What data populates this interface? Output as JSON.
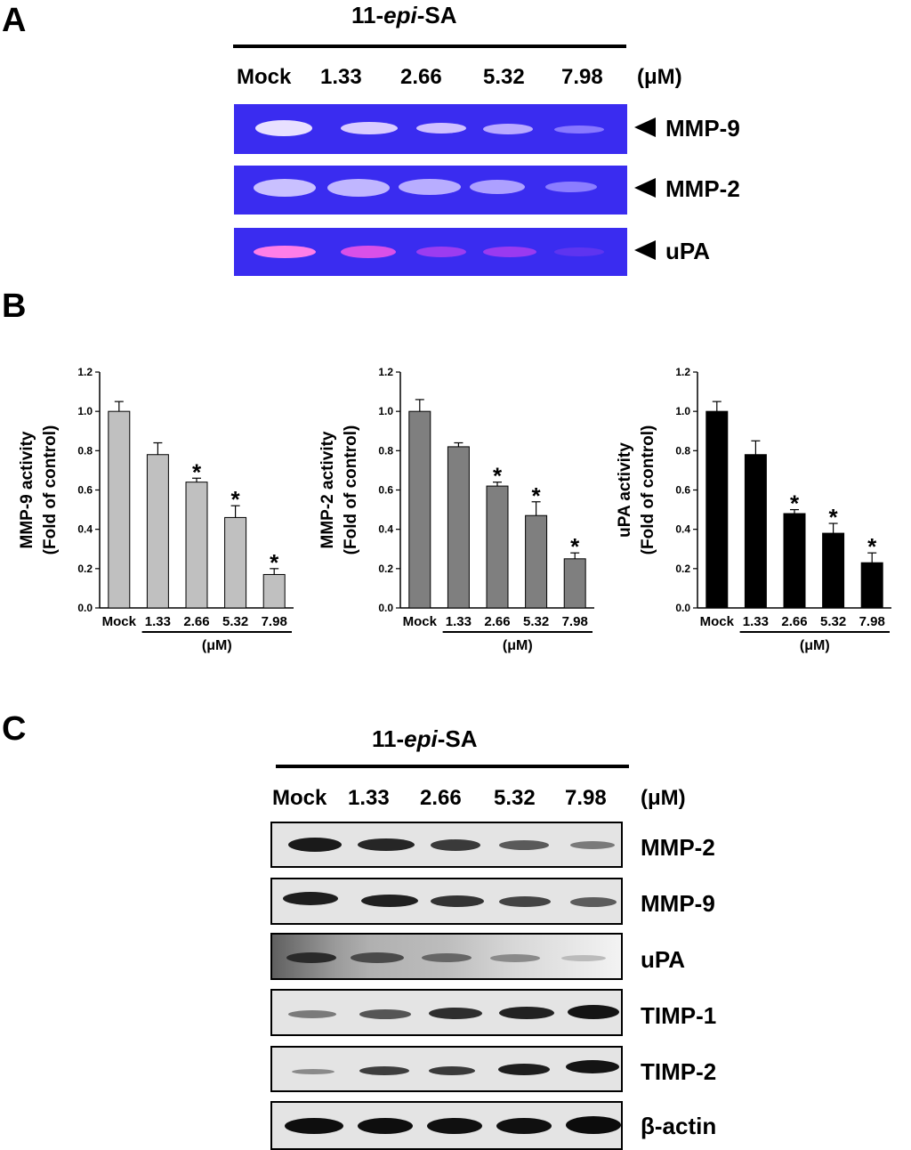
{
  "panels": {
    "a": {
      "letter": "A",
      "title_prefix": "11-",
      "title_italic": "epi",
      "title_suffix": "-SA",
      "lanes": [
        "Mock",
        "1.33",
        "2.66",
        "5.32",
        "7.98"
      ],
      "unit": "(μM)",
      "gel_labels": [
        "MMP-9",
        "MMP-2",
        "uPA"
      ]
    },
    "b": {
      "letter": "B"
    },
    "c": {
      "letter": "C",
      "title_prefix": "11-",
      "title_italic": "epi",
      "title_suffix": "-SA",
      "lanes": [
        "Mock",
        "1.33",
        "2.66",
        "5.32",
        "7.98"
      ],
      "unit": "(μM)",
      "blot_labels": [
        "MMP-2",
        "MMP-9",
        "uPA",
        "TIMP-1",
        "TIMP-2",
        "β-actin"
      ]
    }
  },
  "colors": {
    "gel_background": "#3a2cf0",
    "bar_light": "#c0c0c0",
    "bar_mid": "#7f7f7f",
    "bar_dark": "#000000"
  },
  "chart_data": [
    {
      "type": "bar",
      "categories": [
        "Mock",
        "1.33",
        "2.66",
        "5.32",
        "7.98"
      ],
      "values": [
        1.0,
        0.78,
        0.64,
        0.46,
        0.17
      ],
      "errors": [
        0.05,
        0.06,
        0.02,
        0.06,
        0.03
      ],
      "significant": [
        false,
        false,
        true,
        true,
        true
      ],
      "ylabel_line1": "MMP-9  activity",
      "ylabel_line2": "(Fold of control)",
      "xunit": "(μM)",
      "ylim": [
        0,
        1.2
      ],
      "yticks": [
        "0.0",
        "0.2",
        "0.4",
        "0.6",
        "0.8",
        "1.0",
        "1.2"
      ],
      "color": "#c0c0c0"
    },
    {
      "type": "bar",
      "categories": [
        "Mock",
        "1.33",
        "2.66",
        "5.32",
        "7.98"
      ],
      "values": [
        1.0,
        0.82,
        0.62,
        0.47,
        0.25
      ],
      "errors": [
        0.06,
        0.02,
        0.02,
        0.07,
        0.03
      ],
      "significant": [
        false,
        false,
        true,
        true,
        true
      ],
      "ylabel_line1": "MMP-2  activity",
      "ylabel_line2": "(Fold of control)",
      "xunit": "(μM)",
      "ylim": [
        0,
        1.2
      ],
      "yticks": [
        "0.0",
        "0.2",
        "0.4",
        "0.6",
        "0.8",
        "1.0",
        "1.2"
      ],
      "color": "#7f7f7f"
    },
    {
      "type": "bar",
      "categories": [
        "Mock",
        "1.33",
        "2.66",
        "5.32",
        "7.98"
      ],
      "values": [
        1.0,
        0.78,
        0.48,
        0.38,
        0.23
      ],
      "errors": [
        0.05,
        0.07,
        0.02,
        0.05,
        0.05
      ],
      "significant": [
        false,
        false,
        true,
        true,
        true
      ],
      "ylabel_line1": "uPA  activity",
      "ylabel_line2": "(Fold of control)",
      "xunit": "(μM)",
      "ylim": [
        0,
        1.2
      ],
      "yticks": [
        "0.0",
        "0.2",
        "0.4",
        "0.6",
        "0.8",
        "1.0",
        "1.2"
      ],
      "color": "#000000"
    }
  ]
}
